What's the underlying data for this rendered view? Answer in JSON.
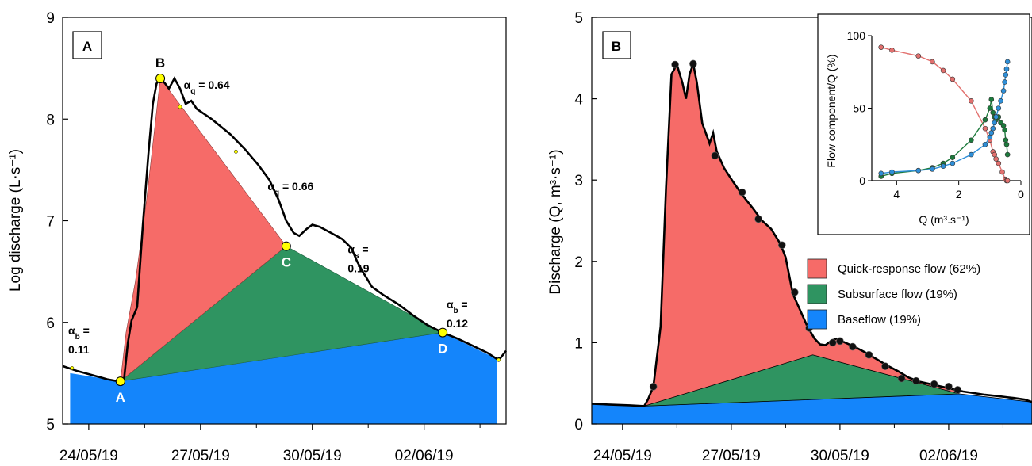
{
  "colors": {
    "quick": "#f66b68",
    "subsurface": "#2f9461",
    "baseflow": "#1485fb",
    "line": "#000000",
    "marker": "#ffff00",
    "inset_quick": "#e2706e",
    "inset_sub": "#1c7a3c",
    "inset_base": "#2e8fd8"
  },
  "chart_data": [
    {
      "type": "area",
      "panel_label": "A",
      "title": "",
      "xlabel": "",
      "ylabel": "Log discharge (L·s⁻¹)",
      "ylim": [
        5,
        9
      ],
      "xlim": [
        23.3,
        35.2
      ],
      "yticks": [
        5,
        6,
        7,
        8,
        9
      ],
      "ytick_labels": [
        "5",
        "6",
        "7",
        "8",
        "9"
      ],
      "xticks": [
        24,
        27,
        30,
        33
      ],
      "xtick_labels": [
        "24/05/19",
        "27/05/19",
        "30/05/19",
        "02/06/19"
      ],
      "grid": false,
      "hydrograph": [
        [
          23.3,
          5.57
        ],
        [
          23.7,
          5.52
        ],
        [
          24.1,
          5.48
        ],
        [
          24.5,
          5.44
        ],
        [
          24.8,
          5.42
        ],
        [
          24.95,
          5.45
        ],
        [
          25.05,
          5.8
        ],
        [
          25.15,
          6.02
        ],
        [
          25.3,
          6.15
        ],
        [
          25.45,
          6.95
        ],
        [
          25.6,
          7.65
        ],
        [
          25.72,
          8.15
        ],
        [
          25.82,
          8.35
        ],
        [
          25.92,
          8.4
        ],
        [
          26.05,
          8.35
        ],
        [
          26.15,
          8.3
        ],
        [
          26.3,
          8.4
        ],
        [
          26.45,
          8.3
        ],
        [
          26.6,
          8.15
        ],
        [
          26.75,
          8.18
        ],
        [
          26.9,
          8.1
        ],
        [
          27.3,
          8.0
        ],
        [
          27.8,
          7.85
        ],
        [
          28.2,
          7.7
        ],
        [
          28.55,
          7.55
        ],
        [
          28.85,
          7.4
        ],
        [
          29.1,
          7.2
        ],
        [
          29.3,
          7.0
        ],
        [
          29.5,
          6.88
        ],
        [
          29.65,
          6.85
        ],
        [
          29.85,
          6.92
        ],
        [
          30.0,
          6.96
        ],
        [
          30.2,
          6.94
        ],
        [
          30.5,
          6.88
        ],
        [
          30.8,
          6.82
        ],
        [
          31.05,
          6.73
        ],
        [
          31.2,
          6.6
        ],
        [
          31.35,
          6.5
        ],
        [
          31.6,
          6.35
        ],
        [
          31.9,
          6.27
        ],
        [
          32.3,
          6.18
        ],
        [
          32.7,
          6.07
        ],
        [
          33.1,
          5.97
        ],
        [
          33.5,
          5.9
        ],
        [
          33.9,
          5.84
        ],
        [
          34.3,
          5.77
        ],
        [
          34.7,
          5.7
        ],
        [
          34.95,
          5.64
        ],
        [
          35.05,
          5.65
        ],
        [
          35.2,
          5.72
        ]
      ],
      "fill_quick": [
        [
          24.85,
          5.42
        ],
        [
          25.0,
          5.9
        ],
        [
          25.25,
          6.4
        ],
        [
          25.55,
          7.2
        ],
        [
          25.75,
          7.85
        ],
        [
          25.92,
          8.4
        ],
        [
          29.3,
          6.75
        ]
      ],
      "fill_subsurface": [
        [
          24.85,
          5.42
        ],
        [
          29.3,
          6.75
        ],
        [
          33.5,
          5.9
        ]
      ],
      "fill_baseflow": [
        [
          23.5,
          5
        ],
        [
          23.5,
          5.5
        ],
        [
          24.85,
          5.42
        ],
        [
          33.5,
          5.9
        ],
        [
          34.95,
          5.64
        ],
        [
          34.95,
          5
        ]
      ],
      "fill_baseflow_tick_label": "",
      "key_points": [
        {
          "label": "A",
          "x": 24.85,
          "y": 5.42,
          "text_color": "#ffffff"
        },
        {
          "label": "B",
          "x": 25.92,
          "y": 8.4,
          "text_color": "#000000"
        },
        {
          "label": "C",
          "x": 29.3,
          "y": 6.75,
          "text_color": "#ffffff"
        },
        {
          "label": "D",
          "x": 33.5,
          "y": 5.9,
          "text_color": "#ffffff"
        }
      ],
      "small_markers": [
        [
          23.55,
          5.55
        ],
        [
          26.45,
          8.12
        ],
        [
          27.95,
          7.68
        ],
        [
          33.55,
          5.9
        ],
        [
          35.0,
          5.63
        ]
      ],
      "annotations": [
        {
          "greek": "α",
          "sub": "q",
          "text": " = 0.64",
          "x": 26.55,
          "y": 8.3,
          "line2": ""
        },
        {
          "greek": "α",
          "sub": "q",
          "text": " = 0.66",
          "x": 28.8,
          "y": 7.3,
          "line2": ""
        },
        {
          "greek": "α",
          "sub": "s",
          "text": " =",
          "x": 30.95,
          "y": 6.68,
          "line2": "0.19"
        },
        {
          "greek": "α",
          "sub": "b",
          "text": " =",
          "x": 33.6,
          "y": 6.14,
          "line2": "0.12"
        },
        {
          "greek": "α",
          "sub": "b",
          "text": " =",
          "x": 23.45,
          "y": 5.88,
          "line2": "0.11"
        }
      ]
    },
    {
      "type": "area",
      "panel_label": "B",
      "title": "",
      "xlabel": "",
      "ylabel": "Discharge (Q, m³·s⁻¹)",
      "ylim": [
        0,
        5
      ],
      "xlim": [
        23.15,
        35.3
      ],
      "yticks": [
        0,
        1,
        2,
        3,
        4,
        5
      ],
      "ytick_labels": [
        "0",
        "1",
        "2",
        "3",
        "4",
        "5"
      ],
      "xticks": [
        24,
        27,
        30,
        33
      ],
      "xtick_labels": [
        "24/05/19",
        "27/05/19",
        "30/05/19",
        "02/06/19"
      ],
      "grid": false,
      "hydrograph": [
        [
          23.15,
          0.25
        ],
        [
          23.6,
          0.24
        ],
        [
          24.2,
          0.23
        ],
        [
          24.6,
          0.22
        ],
        [
          24.7,
          0.3
        ],
        [
          24.85,
          0.46
        ],
        [
          25.05,
          1.2
        ],
        [
          25.2,
          2.9
        ],
        [
          25.35,
          4.3
        ],
        [
          25.5,
          4.42
        ],
        [
          25.65,
          4.2
        ],
        [
          25.75,
          4.0
        ],
        [
          25.85,
          4.3
        ],
        [
          25.95,
          4.43
        ],
        [
          26.05,
          4.2
        ],
        [
          26.2,
          3.7
        ],
        [
          26.4,
          3.45
        ],
        [
          26.5,
          3.58
        ],
        [
          26.6,
          3.35
        ],
        [
          26.8,
          3.15
        ],
        [
          27.05,
          2.98
        ],
        [
          27.3,
          2.82
        ],
        [
          27.6,
          2.65
        ],
        [
          27.85,
          2.5
        ],
        [
          28.1,
          2.4
        ],
        [
          28.35,
          2.22
        ],
        [
          28.5,
          2.05
        ],
        [
          28.7,
          1.6
        ],
        [
          28.9,
          1.4
        ],
        [
          29.1,
          1.2
        ],
        [
          29.3,
          1.05
        ],
        [
          29.45,
          0.98
        ],
        [
          29.6,
          0.97
        ],
        [
          29.75,
          1.02
        ],
        [
          29.9,
          1.05
        ],
        [
          30.1,
          1.01
        ],
        [
          30.4,
          0.95
        ],
        [
          30.7,
          0.88
        ],
        [
          31.0,
          0.8
        ],
        [
          31.3,
          0.72
        ],
        [
          31.6,
          0.65
        ],
        [
          31.9,
          0.57
        ],
        [
          32.2,
          0.52
        ],
        [
          32.5,
          0.49
        ],
        [
          32.8,
          0.46
        ],
        [
          33.1,
          0.43
        ],
        [
          33.4,
          0.4
        ],
        [
          33.7,
          0.38
        ],
        [
          34.0,
          0.36
        ],
        [
          34.4,
          0.34
        ],
        [
          34.8,
          0.32
        ],
        [
          35.1,
          0.3
        ],
        [
          35.3,
          0.27
        ]
      ],
      "quick_upper_end": 33.3,
      "subsurface_line": [
        [
          24.6,
          0.22
        ],
        [
          29.25,
          0.85
        ],
        [
          33.3,
          0.37
        ]
      ],
      "baseflow_line": [
        [
          23.15,
          0.25
        ],
        [
          24.6,
          0.22
        ],
        [
          33.3,
          0.37
        ],
        [
          35.3,
          0.27
        ]
      ],
      "points": [
        [
          24.85,
          0.46
        ],
        [
          25.45,
          4.42
        ],
        [
          25.95,
          4.43
        ],
        [
          26.55,
          3.3
        ],
        [
          27.3,
          2.85
        ],
        [
          27.75,
          2.52
        ],
        [
          28.4,
          2.2
        ],
        [
          28.75,
          1.62
        ],
        [
          29.15,
          1.18
        ],
        [
          29.8,
          1.0
        ],
        [
          30.0,
          1.02
        ],
        [
          30.35,
          0.95
        ],
        [
          30.8,
          0.85
        ],
        [
          31.25,
          0.71
        ],
        [
          31.7,
          0.56
        ],
        [
          32.1,
          0.53
        ],
        [
          32.6,
          0.49
        ],
        [
          33.0,
          0.46
        ],
        [
          33.25,
          0.42
        ]
      ],
      "legend": {
        "placement": "right",
        "entries": [
          {
            "label": "Quick-response flow (62%)",
            "color_key": "quick"
          },
          {
            "label": "Subsurface flow (19%)",
            "color_key": "subsurface"
          },
          {
            "label": "Baseflow (19%)",
            "color_key": "baseflow"
          }
        ]
      }
    },
    {
      "type": "line",
      "title": "",
      "xlabel": "Q (m³.s⁻¹)",
      "ylabel": "Flow component/Q (%)",
      "xlim": [
        4.8,
        0
      ],
      "ylim": [
        0,
        100
      ],
      "xticks": [
        4,
        2,
        0
      ],
      "xtick_labels": [
        "4",
        "2",
        "0"
      ],
      "yticks": [
        0,
        50,
        100
      ],
      "ytick_labels": [
        "0",
        "50",
        "100"
      ],
      "series": [
        {
          "color_key": "inset_quick",
          "x": [
            4.5,
            4.15,
            3.3,
            2.85,
            2.5,
            2.2,
            1.6,
            1.15,
            1.0,
            0.9,
            0.85,
            0.8,
            0.72,
            0.6,
            0.5,
            0.46,
            0.43
          ],
          "y": [
            92,
            90,
            86,
            82,
            76,
            70,
            55,
            36,
            28,
            20,
            18,
            15,
            12,
            6,
            1,
            0,
            0
          ]
        },
        {
          "color_key": "inset_sub",
          "x": [
            4.5,
            4.15,
            3.3,
            2.85,
            2.5,
            2.2,
            1.6,
            1.15,
            1.0,
            0.95,
            0.9,
            0.85,
            0.8,
            0.72,
            0.65,
            0.56,
            0.52,
            0.49,
            0.46,
            0.43
          ],
          "y": [
            3,
            5,
            7,
            9,
            12,
            16,
            28,
            42,
            50,
            56,
            47,
            44,
            42,
            44,
            40,
            38,
            35,
            28,
            25,
            18
          ]
        },
        {
          "color_key": "inset_base",
          "x": [
            4.5,
            4.15,
            3.3,
            2.85,
            2.5,
            2.2,
            1.6,
            1.15,
            1.0,
            0.95,
            0.9,
            0.85,
            0.8,
            0.72,
            0.65,
            0.56,
            0.52,
            0.49,
            0.46,
            0.43
          ],
          "y": [
            5,
            6,
            7,
            8,
            10,
            12,
            18,
            25,
            30,
            33,
            36,
            40,
            44,
            50,
            55,
            62,
            68,
            73,
            77,
            82
          ]
        }
      ]
    }
  ]
}
